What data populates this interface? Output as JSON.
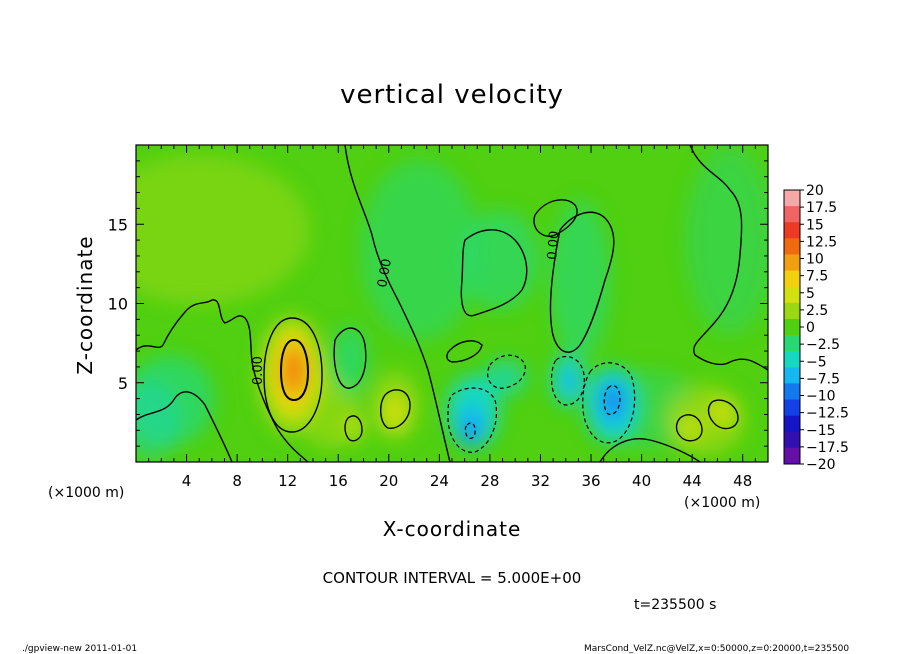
{
  "chart_data": {
    "type": "heatmap",
    "title": "vertical velocity",
    "xlabel": "X-coordinate",
    "ylabel": "Z-coordinate",
    "x_unit_label": "(×1000 m)",
    "y_unit_label": "(×1000 m)",
    "xlim": [
      0,
      50
    ],
    "ylim": [
      0,
      20
    ],
    "x_ticks": [
      4,
      8,
      12,
      16,
      20,
      24,
      28,
      32,
      36,
      40,
      44,
      48
    ],
    "y_ticks": [
      5,
      10,
      15
    ],
    "zero_contour_label": "0.00",
    "colorbar": {
      "levels": [
        20,
        17.5,
        15,
        12.5,
        10,
        7.5,
        5,
        2.5,
        0,
        -2.5,
        -5,
        -7.5,
        -10,
        -12.5,
        -15,
        -17.5,
        -20
      ],
      "labels": [
        "20",
        "17.5",
        "15",
        "12.5",
        "10",
        "7.5",
        "5",
        "2.5",
        "0",
        "−2.5",
        "−5",
        "−7.5",
        "−10",
        "−12.5",
        "−15",
        "−17.5",
        "−20"
      ],
      "colors": [
        "#f7a8a8",
        "#f06464",
        "#ee3a24",
        "#f06a10",
        "#f0a010",
        "#f2d010",
        "#d2e010",
        "#9ad814",
        "#50d010",
        "#28d870",
        "#14d8c0",
        "#14b8f0",
        "#1478f0",
        "#1440e8",
        "#1414c8",
        "#3210b0",
        "#6410a8"
      ]
    },
    "features": [
      {
        "type": "updraft",
        "x": 12.3,
        "z": 5.8,
        "value": 12.5
      },
      {
        "type": "updraft",
        "x": 20.5,
        "z": 3.0,
        "value": 5
      },
      {
        "type": "updraft",
        "x": 17.2,
        "z": 2.2,
        "value": 5
      },
      {
        "type": "updraft",
        "x": 44.2,
        "z": 2.5,
        "value": 5
      },
      {
        "type": "updraft",
        "x": 46.7,
        "z": 3.0,
        "value": 5
      },
      {
        "type": "downdraft",
        "x": 26.2,
        "z": 2.3,
        "value": -10
      },
      {
        "type": "downdraft",
        "x": 34.3,
        "z": 5.0,
        "value": -7.5
      },
      {
        "type": "downdraft",
        "x": 37.8,
        "z": 4.0,
        "value": -12.5
      }
    ]
  },
  "annotations": {
    "contour_interval": "CONTOUR INTERVAL = 5.000E+00",
    "time": "t=235500 s",
    "program": "./gpview-new  2011-01-01",
    "source": "MarsCond_VelZ.nc@VelZ,x=0:50000,z=0:20000,t=235500"
  }
}
